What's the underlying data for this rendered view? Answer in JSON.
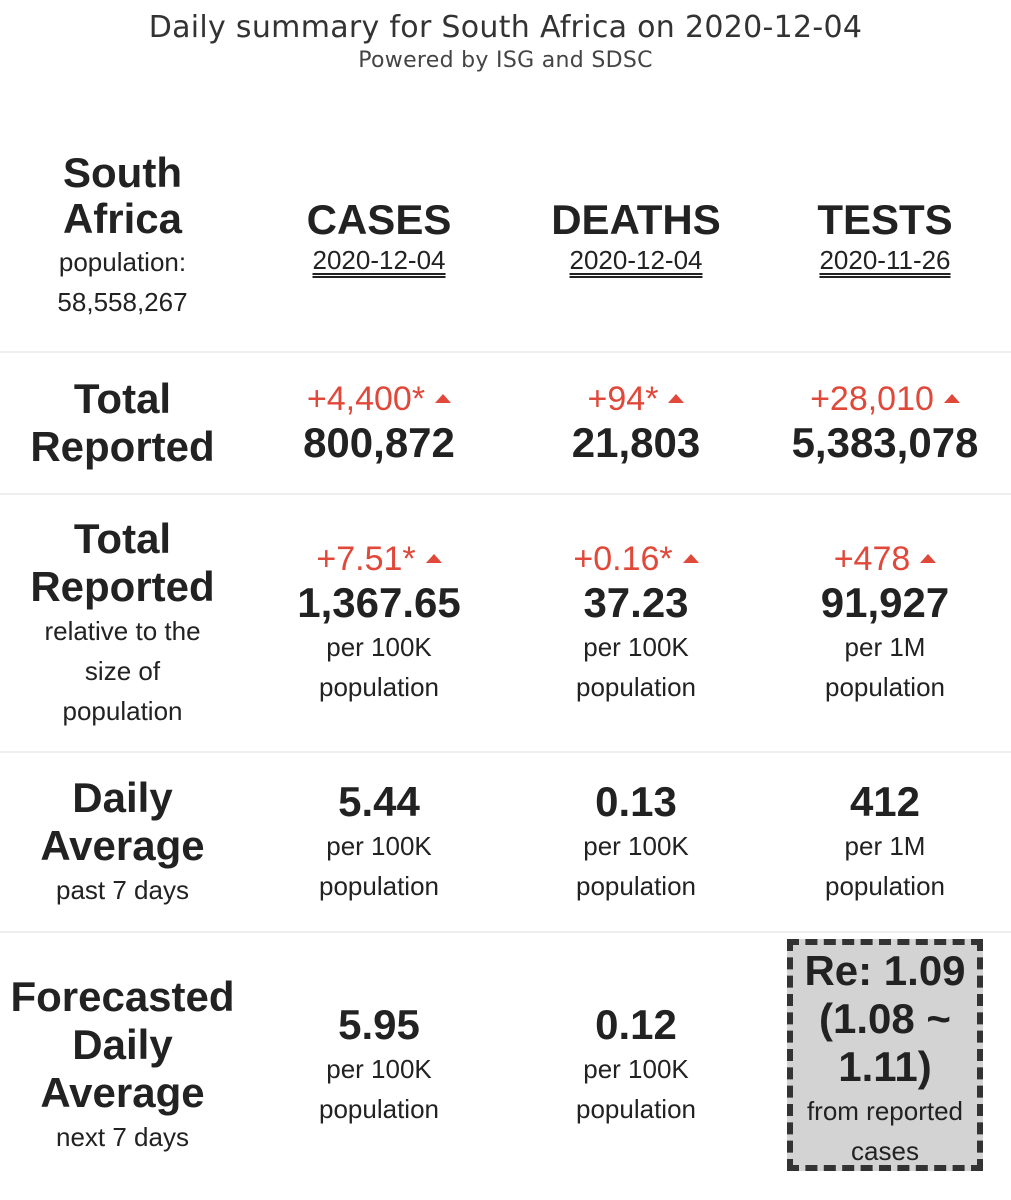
{
  "header": {
    "title": "Daily summary for South Africa on 2020-12-04",
    "subtitle": "Powered by ISG and SDSC"
  },
  "country": {
    "name_line1": "South",
    "name_line2": "Africa",
    "population_label": "population:",
    "population_value": "58,558,267"
  },
  "columns": {
    "cases": {
      "label": "CASES",
      "date": "2020-12-04"
    },
    "deaths": {
      "label": "DEATHS",
      "date": "2020-12-04"
    },
    "tests": {
      "label": "TESTS",
      "date": "2020-11-26"
    }
  },
  "rows": {
    "total": {
      "label_line1": "Total",
      "label_line2": "Reported",
      "cases": {
        "delta": "+4,400*",
        "value": "800,872"
      },
      "deaths": {
        "delta": "+94*",
        "value": "21,803"
      },
      "tests": {
        "delta": "+28,010",
        "value": "5,383,078"
      }
    },
    "relative": {
      "label_line1": "Total",
      "label_line2": "Reported",
      "sub_line1": "relative to the",
      "sub_line2": "size of",
      "sub_line3": "population",
      "cases": {
        "delta": "+7.51*",
        "value": "1,367.65",
        "unit1": "per 100K",
        "unit2": "population"
      },
      "deaths": {
        "delta": "+0.16*",
        "value": "37.23",
        "unit1": "per 100K",
        "unit2": "population"
      },
      "tests": {
        "delta": "+478",
        "value": "91,927",
        "unit1": "per 1M",
        "unit2": "population"
      }
    },
    "daily_avg": {
      "label_line1": "Daily",
      "label_line2": "Average",
      "sub": "past 7 days",
      "cases": {
        "value": "5.44",
        "unit1": "per 100K",
        "unit2": "population"
      },
      "deaths": {
        "value": "0.13",
        "unit1": "per 100K",
        "unit2": "population"
      },
      "tests": {
        "value": "412",
        "unit1": "per 1M",
        "unit2": "population"
      }
    },
    "forecast": {
      "label_line1": "Forecasted",
      "label_line2": "Daily",
      "label_line3": "Average",
      "sub": "next 7 days",
      "cases": {
        "value": "5.95",
        "unit1": "per 100K",
        "unit2": "population"
      },
      "deaths": {
        "value": "0.12",
        "unit1": "per 100K",
        "unit2": "population"
      },
      "re": {
        "line1": "Re: 1.09",
        "line2": "(1.08 ~",
        "line3": "1.11)",
        "sub1": "from reported",
        "sub2": "cases"
      }
    }
  },
  "colors": {
    "increase": "#e0483a",
    "re_box_bg": "#d3d3d3"
  }
}
